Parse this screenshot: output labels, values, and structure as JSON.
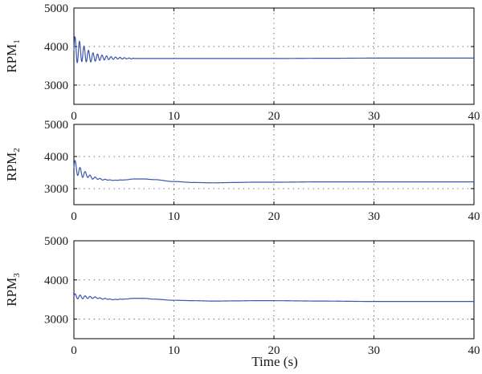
{
  "colors": {
    "line": "#3a56b0",
    "axis": "#000000",
    "grid": "#555555",
    "background": "#ffffff"
  },
  "chart_data": [
    {
      "type": "line",
      "ylabel": "RPM",
      "ylabel_sub": "1",
      "xlim": [
        0,
        40
      ],
      "ylim": [
        2500,
        5000
      ],
      "xticks": [
        "0",
        "10",
        "20",
        "30",
        "40"
      ],
      "yticks": [
        "3000",
        "4000",
        "5000"
      ],
      "grid": true,
      "series": [
        {
          "x": [
            0,
            2,
            4,
            6,
            8,
            10,
            15,
            20,
            25,
            30,
            35,
            40
          ],
          "y": [
            3900,
            3720,
            3700,
            3690,
            3690,
            3690,
            3690,
            3690,
            3695,
            3700,
            3700,
            3700
          ],
          "osc": {
            "start": 3900,
            "amp": 380,
            "period": 0.45,
            "tau": 1.6,
            "base": 3690
          }
        }
      ]
    },
    {
      "type": "line",
      "ylabel": "RPM",
      "ylabel_sub": "2",
      "xlim": [
        0,
        40
      ],
      "ylim": [
        2500,
        5000
      ],
      "xticks": [
        "0",
        "10",
        "20",
        "30",
        "40"
      ],
      "yticks": [
        "3000",
        "4000",
        "5000"
      ],
      "grid": true,
      "series": [
        {
          "x": [
            0,
            1,
            2,
            3,
            4,
            5,
            6,
            7,
            8,
            10,
            12,
            14,
            16,
            18,
            20,
            25,
            30,
            35,
            40
          ],
          "y": [
            3650,
            3450,
            3330,
            3280,
            3260,
            3270,
            3300,
            3300,
            3280,
            3220,
            3190,
            3180,
            3190,
            3200,
            3200,
            3210,
            3210,
            3210,
            3210
          ],
          "osc": {
            "start": 3650,
            "amp": 260,
            "period": 0.5,
            "tau": 1.0,
            "base": 3330
          }
        }
      ]
    },
    {
      "type": "line",
      "ylabel": "RPM",
      "ylabel_sub": "3",
      "xlim": [
        0,
        40
      ],
      "ylim": [
        2500,
        5000
      ],
      "xticks": [
        "0",
        "10",
        "20",
        "30",
        "40"
      ],
      "yticks": [
        "3000",
        "4000",
        "5000"
      ],
      "grid": true,
      "series": [
        {
          "x": [
            0,
            1,
            2,
            3,
            4,
            5,
            6,
            7,
            8,
            10,
            12,
            14,
            16,
            18,
            20,
            25,
            30,
            35,
            40
          ],
          "y": [
            3580,
            3560,
            3550,
            3520,
            3500,
            3510,
            3530,
            3530,
            3510,
            3480,
            3470,
            3460,
            3465,
            3470,
            3470,
            3460,
            3450,
            3450,
            3450
          ],
          "osc": {
            "start": 3580,
            "amp": 70,
            "period": 0.5,
            "tau": 1.6,
            "base": 3550
          }
        }
      ]
    }
  ],
  "xlabel": "Time (s)"
}
